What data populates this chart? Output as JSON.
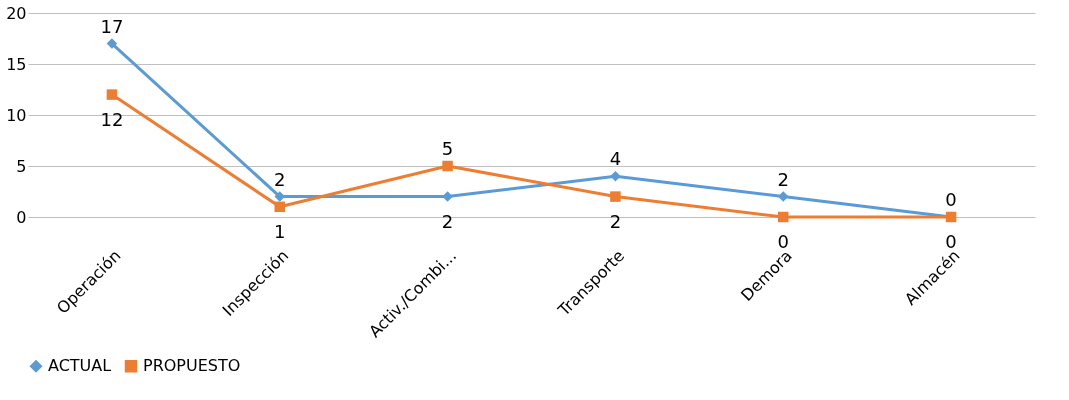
{
  "chart_data": {
    "type": "line",
    "categories": [
      "Operación",
      "Inspección",
      "Activ./Combi...",
      "Transporte",
      "Demora",
      "Almacén"
    ],
    "series": [
      {
        "name": "ACTUAL",
        "color": "#5b9bd5",
        "marker": "diamond",
        "values": [
          17,
          2,
          2,
          4,
          2,
          0
        ]
      },
      {
        "name": "PROPUESTO",
        "color": "#ed7d31",
        "marker": "square",
        "values": [
          12,
          1,
          5,
          2,
          0,
          0
        ]
      }
    ],
    "ylim": [
      0,
      20
    ],
    "yticks": [
      0,
      5,
      10,
      15,
      20
    ],
    "grid": "y",
    "legend": "bottom",
    "data_labels": true,
    "line_style": "solid"
  }
}
